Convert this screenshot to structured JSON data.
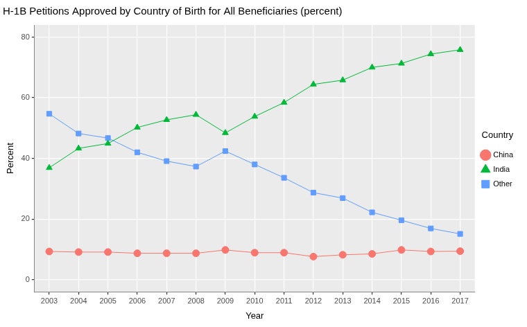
{
  "chart_data": {
    "type": "line",
    "title": "H-1B Petitions Approved by Country of Birth for All Beneficiaries (percent)",
    "x_label": "Year",
    "y_label": "Percent",
    "legend_title": "Country",
    "legend": "right",
    "grid": true,
    "categories": [
      "2003",
      "2004",
      "2005",
      "2006",
      "2007",
      "2008",
      "2009",
      "2010",
      "2011",
      "2012",
      "2013",
      "2014",
      "2015",
      "2016",
      "2017"
    ],
    "series": [
      {
        "name": "China",
        "color": "#F8766D",
        "marker": "circle",
        "values": [
          9.3,
          9.1,
          9.1,
          8.7,
          8.7,
          8.7,
          9.8,
          8.9,
          8.9,
          7.6,
          8.2,
          8.5,
          9.8,
          9.3,
          9.4
        ]
      },
      {
        "name": "India",
        "color": "#00BA38",
        "marker": "triangle",
        "values": [
          36.9,
          43.3,
          44.9,
          50.2,
          52.7,
          54.4,
          48.4,
          53.8,
          58.4,
          64.4,
          65.8,
          70.0,
          71.3,
          74.4,
          75.8
        ]
      },
      {
        "name": "Other",
        "color": "#619CFF",
        "marker": "square",
        "values": [
          54.7,
          48.2,
          46.7,
          42.0,
          39.1,
          37.3,
          42.4,
          38.0,
          33.6,
          28.7,
          26.9,
          22.2,
          19.6,
          16.9,
          15.1
        ]
      }
    ],
    "ylim": [
      -4,
      84
    ],
    "yticks": [
      0,
      20,
      40,
      60,
      80
    ]
  }
}
